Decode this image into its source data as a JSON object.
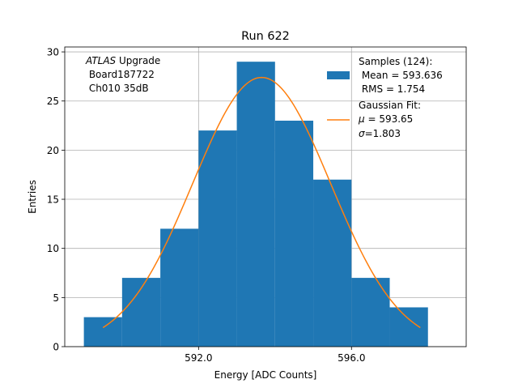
{
  "chart_data": {
    "type": "bar",
    "title": "Run 622",
    "xlabel": "Energy [ADC Counts]",
    "ylabel": "Entries",
    "xlim": [
      588.5,
      599.0
    ],
    "ylim": [
      0,
      30.5
    ],
    "xticks": [
      592.0,
      596.0
    ],
    "xtick_labels": [
      "592.0",
      "596.0"
    ],
    "yticks": [
      0,
      5,
      10,
      15,
      20,
      25,
      30
    ],
    "ytick_labels": [
      "0",
      "5",
      "10",
      "15",
      "20",
      "25",
      "30"
    ],
    "grid": true,
    "annotation": {
      "italic": "ATLAS",
      "rest": " Upgrade",
      "line2": " Board187722",
      "line3": " Ch010 35dB"
    },
    "histogram": {
      "bin_edges": [
        589,
        590,
        591,
        592,
        593,
        594,
        595,
        596,
        597,
        598
      ],
      "counts": [
        3,
        7,
        12,
        22,
        29,
        23,
        17,
        7,
        4
      ],
      "color": "#1f77b4"
    },
    "fit": {
      "mu": 593.65,
      "sigma": 1.803,
      "amplitude": 27.4,
      "x_range": [
        589.5,
        597.8
      ],
      "color": "#ff7f0e"
    },
    "legend": {
      "placement": "top-right",
      "samples": {
        "line1": "Samples (124):",
        "line2": " Mean = 593.636",
        "line3": " RMS = 1.754"
      },
      "fit": {
        "line1": "Gaussian Fit:",
        "line2_symbol": "μ",
        "line2_text": " = 593.65",
        "line3_symbol": "σ",
        "line3_text": "=1.803"
      }
    }
  }
}
